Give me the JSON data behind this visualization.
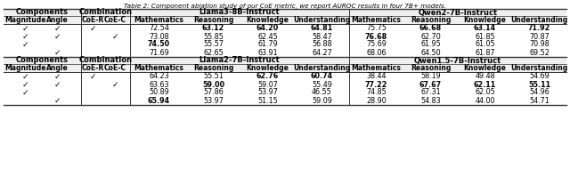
{
  "title": "Table 2: Component ablation study of our CoE metric, we report AUROC results in four 7B+ models.",
  "section1_model1": "Llama3-8B-Instruct",
  "section1_model2": "Qwen2-7B-Instruct",
  "section2_model1": "Llama2-7B-Instruct",
  "section2_model2": "Qwen1.5-7B-Instruct",
  "rows_s1": [
    {
      "mag": true,
      "ang": true,
      "coe_r": true,
      "coe_c": false,
      "v": [
        72.54,
        63.12,
        64.2,
        64.81,
        75.75,
        66.68,
        63.14,
        71.92
      ],
      "bold": [
        false,
        true,
        true,
        true,
        false,
        true,
        true,
        true
      ]
    },
    {
      "mag": true,
      "ang": true,
      "coe_r": false,
      "coe_c": true,
      "v": [
        73.08,
        55.85,
        62.45,
        58.47,
        76.68,
        62.7,
        61.85,
        70.87
      ],
      "bold": [
        false,
        false,
        false,
        false,
        true,
        false,
        false,
        false
      ]
    },
    {
      "mag": true,
      "ang": false,
      "coe_r": false,
      "coe_c": false,
      "v": [
        74.5,
        55.57,
        61.79,
        56.88,
        75.69,
        61.95,
        61.05,
        70.98
      ],
      "bold": [
        true,
        false,
        false,
        false,
        false,
        false,
        false,
        false
      ]
    },
    {
      "mag": false,
      "ang": true,
      "coe_r": false,
      "coe_c": false,
      "v": [
        71.69,
        62.65,
        63.91,
        64.27,
        68.06,
        64.5,
        61.87,
        69.52
      ],
      "bold": [
        false,
        false,
        false,
        false,
        false,
        false,
        false,
        false
      ]
    }
  ],
  "rows_s2": [
    {
      "mag": true,
      "ang": true,
      "coe_r": true,
      "coe_c": false,
      "v": [
        64.23,
        55.51,
        62.76,
        60.74,
        38.44,
        58.19,
        49.48,
        54.69
      ],
      "bold": [
        false,
        false,
        true,
        true,
        false,
        false,
        false,
        false
      ]
    },
    {
      "mag": true,
      "ang": true,
      "coe_r": false,
      "coe_c": true,
      "v": [
        63.63,
        59.0,
        59.07,
        55.49,
        77.22,
        67.67,
        62.11,
        55.11
      ],
      "bold": [
        false,
        true,
        false,
        false,
        true,
        true,
        true,
        true
      ]
    },
    {
      "mag": true,
      "ang": false,
      "coe_r": false,
      "coe_c": false,
      "v": [
        50.89,
        57.86,
        53.97,
        46.55,
        74.85,
        67.31,
        62.05,
        54.96
      ],
      "bold": [
        false,
        false,
        false,
        false,
        false,
        false,
        false,
        false
      ]
    },
    {
      "mag": false,
      "ang": true,
      "coe_r": false,
      "coe_c": false,
      "v": [
        65.94,
        53.97,
        51.15,
        59.09,
        28.9,
        54.83,
        44.0,
        54.71
      ],
      "bold": [
        true,
        false,
        false,
        false,
        false,
        false,
        false,
        false
      ]
    }
  ]
}
